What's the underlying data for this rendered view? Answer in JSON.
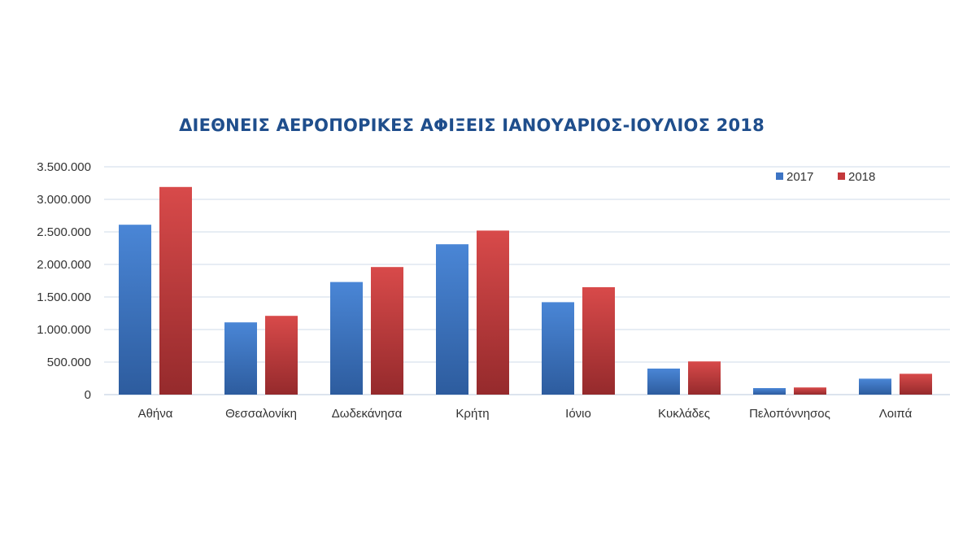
{
  "chart_data": {
    "type": "bar",
    "title": "ΔΙΕΘΝΕΙΣ ΑΕΡΟΠΟΡΙΚΕΣ ΑΦΙΞΕΙΣ ΙΑΝΟΥΑΡΙΟΣ-ΙΟΥΛΙΟΣ 2018",
    "categories": [
      "Αθήνα",
      "Θεσσαλονίκη",
      "Δωδεκάνησα",
      "Κρήτη",
      "Ιόνιο",
      "Κυκλάδες",
      "Πελοπόννησος",
      "Λοιπά"
    ],
    "series": [
      {
        "name": "2017",
        "color": "#3d74c4",
        "values": [
          2610000,
          1110000,
          1730000,
          2310000,
          1420000,
          400000,
          100000,
          245000
        ]
      },
      {
        "name": "2018",
        "color": "#c4383b",
        "values": [
          3190000,
          1210000,
          1960000,
          2520000,
          1650000,
          510000,
          110000,
          320000
        ]
      }
    ],
    "ylim": [
      0,
      3500000
    ],
    "yticks": [
      0,
      500000,
      1000000,
      1500000,
      2000000,
      2500000,
      3000000,
      3500000
    ],
    "ytick_labels": [
      "0",
      "500.000",
      "1.000.000",
      "1.500.000",
      "2.000.000",
      "2.500.000",
      "3.000.000",
      "3.500.000"
    ],
    "xlabel": "",
    "ylabel": "",
    "grid": true,
    "legend_position": "top-right"
  }
}
